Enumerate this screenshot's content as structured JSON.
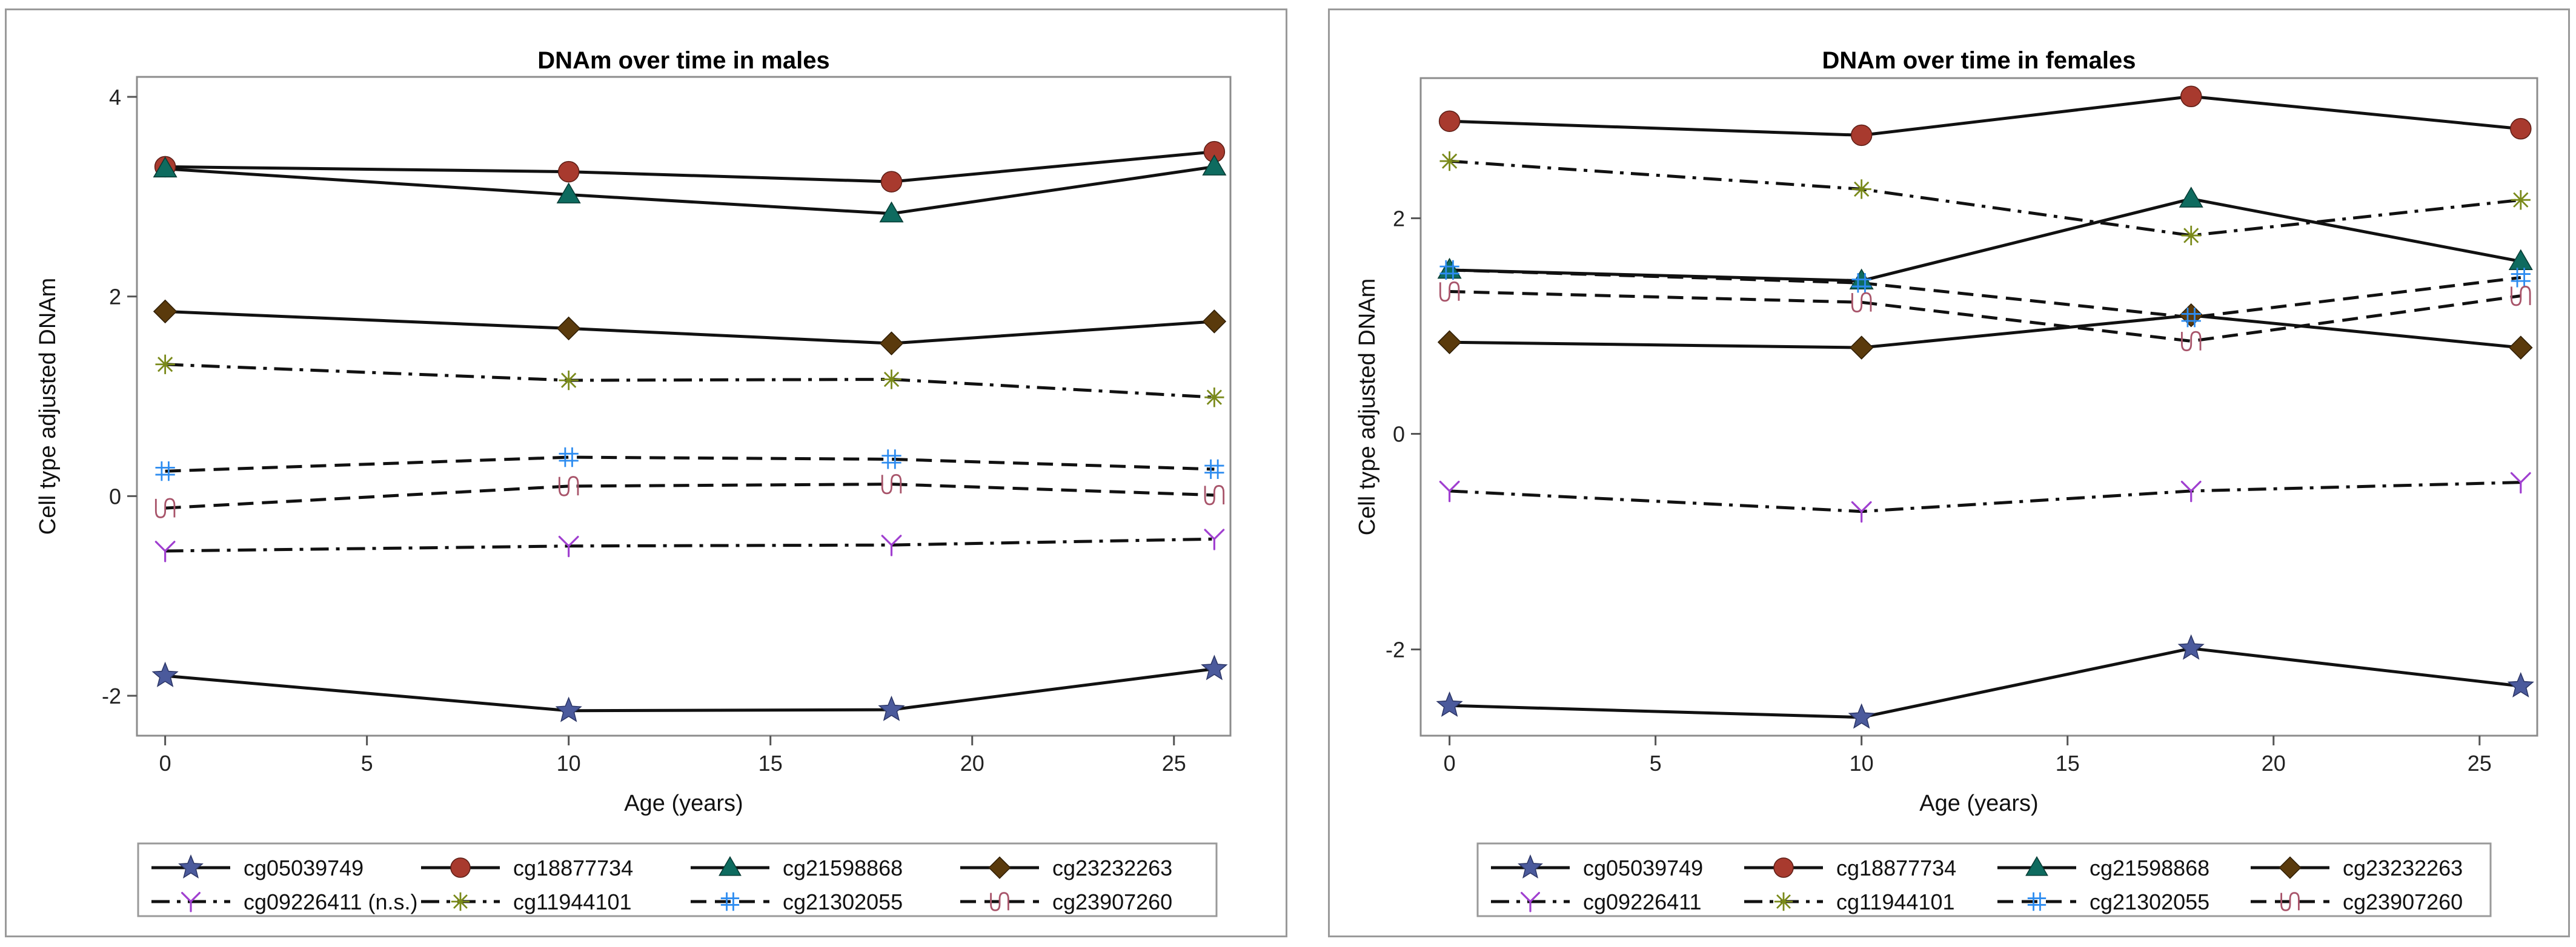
{
  "colors": {
    "cg05039749": "#4b5a9c",
    "cg18877734": "#a83a2e",
    "cg21598868": "#0e6b5f",
    "cg23232263": "#5a3a0c",
    "cg09226411": "#a03fd0",
    "cg11944101": "#7a8a1a",
    "cg21302055": "#2d8cf0",
    "cg23907260": "#a8546a"
  },
  "chart_data": [
    {
      "type": "line",
      "title": "DNAm over time in males",
      "xlabel": "Age (years)",
      "ylabel": "Cell type adjusted DNAm",
      "xlim": [
        -0.7,
        26.4
      ],
      "ylim": [
        -2.4,
        4.2
      ],
      "xticks": [
        0,
        5,
        10,
        15,
        20,
        25
      ],
      "xtick_labels": [
        "0",
        "5",
        "10",
        "15",
        "20",
        "25"
      ],
      "yticks": [
        -2,
        0,
        2,
        4
      ],
      "ytick_labels": [
        "-2",
        "0",
        "2",
        "4"
      ],
      "x": [
        0,
        10,
        18,
        26
      ],
      "series": [
        {
          "name": "cg05039749",
          "legend_label": "cg05039749",
          "values": [
            -1.8,
            -2.15,
            -2.14,
            -1.73
          ],
          "style": "solid",
          "marker": "star"
        },
        {
          "name": "cg18877734",
          "legend_label": "cg18877734",
          "values": [
            3.3,
            3.25,
            3.15,
            3.45
          ],
          "style": "solid",
          "marker": "circle"
        },
        {
          "name": "cg21598868",
          "legend_label": "cg21598868",
          "values": [
            3.28,
            3.02,
            2.83,
            3.3
          ],
          "style": "solid",
          "marker": "triangle"
        },
        {
          "name": "cg23232263",
          "legend_label": "cg23232263",
          "values": [
            1.85,
            1.68,
            1.53,
            1.75
          ],
          "style": "solid",
          "marker": "diamond"
        },
        {
          "name": "cg09226411",
          "legend_label": "cg09226411 (n.s.)",
          "values": [
            -0.55,
            -0.5,
            -0.49,
            -0.43
          ],
          "style": "dashdot",
          "marker": "y"
        },
        {
          "name": "cg11944101",
          "legend_label": "cg11944101",
          "values": [
            1.32,
            1.16,
            1.17,
            0.99
          ],
          "style": "dashdot",
          "marker": "asterisk"
        },
        {
          "name": "cg21302055",
          "legend_label": "cg21302055",
          "values": [
            0.25,
            0.39,
            0.37,
            0.27
          ],
          "style": "dash",
          "marker": "hash"
        },
        {
          "name": "cg23907260",
          "legend_label": "cg23907260",
          "values": [
            -0.12,
            0.1,
            0.12,
            0.01
          ],
          "style": "dash",
          "marker": "tilde"
        }
      ]
    },
    {
      "type": "line",
      "title": "DNAm over time in females",
      "xlabel": "Age (years)",
      "ylabel": "Cell type adjusted DNAm",
      "xlim": [
        -0.7,
        26.4
      ],
      "ylim": [
        -2.8,
        3.3
      ],
      "xticks": [
        0,
        5,
        10,
        15,
        20,
        25
      ],
      "xtick_labels": [
        "0",
        "5",
        "10",
        "15",
        "20",
        "25"
      ],
      "yticks": [
        -2,
        0,
        2
      ],
      "ytick_labels": [
        "-2",
        "0",
        "2"
      ],
      "x": [
        0,
        10,
        18,
        26
      ],
      "series": [
        {
          "name": "cg05039749",
          "legend_label": "cg05039749",
          "values": [
            -2.52,
            -2.63,
            -1.99,
            -2.34
          ],
          "style": "solid",
          "marker": "star"
        },
        {
          "name": "cg18877734",
          "legend_label": "cg18877734",
          "values": [
            2.9,
            2.77,
            3.13,
            2.83
          ],
          "style": "solid",
          "marker": "circle"
        },
        {
          "name": "cg21598868",
          "legend_label": "cg21598868",
          "values": [
            1.52,
            1.42,
            2.18,
            1.6
          ],
          "style": "solid",
          "marker": "triangle"
        },
        {
          "name": "cg23232263",
          "legend_label": "cg23232263",
          "values": [
            0.85,
            0.8,
            1.1,
            0.8
          ],
          "style": "solid",
          "marker": "diamond"
        },
        {
          "name": "cg09226411",
          "legend_label": "cg09226411",
          "values": [
            -0.53,
            -0.72,
            -0.53,
            -0.45
          ],
          "style": "dashdot",
          "marker": "y"
        },
        {
          "name": "cg11944101",
          "legend_label": "cg11944101",
          "values": [
            2.53,
            2.27,
            1.84,
            2.17
          ],
          "style": "dashdot",
          "marker": "asterisk"
        },
        {
          "name": "cg21302055",
          "legend_label": "cg21302055",
          "values": [
            1.52,
            1.4,
            1.08,
            1.45
          ],
          "style": "dash",
          "marker": "hash"
        },
        {
          "name": "cg23907260",
          "legend_label": "cg23907260",
          "values": [
            1.32,
            1.22,
            0.86,
            1.28
          ],
          "style": "dash",
          "marker": "tilde"
        }
      ]
    }
  ]
}
